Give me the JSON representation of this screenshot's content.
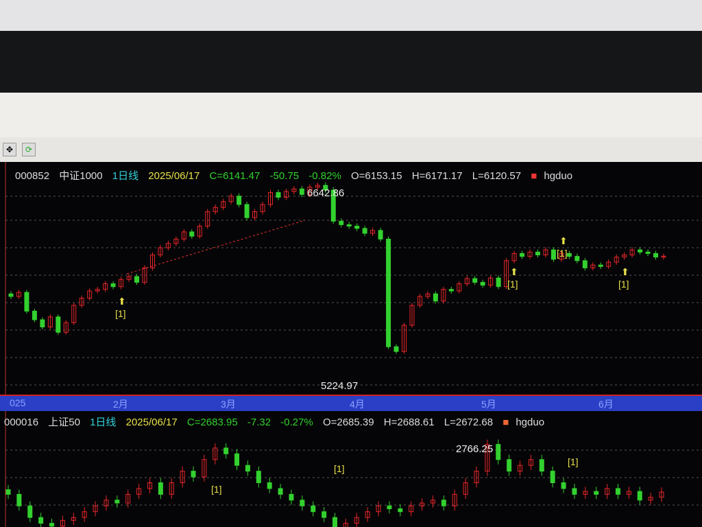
{
  "toolbar": {
    "icons": [
      "move-icon",
      "refresh-icon"
    ]
  },
  "top": {
    "code": "000852",
    "name": "中证1000",
    "period": "1日线",
    "date": "2025/06/17",
    "close": "C=6141.47",
    "change": "-50.75",
    "pct": "-0.82%",
    "open": "O=6153.15",
    "high": "H=6171.17",
    "low": "L=6120.57",
    "indicator": "hgduo",
    "max_label": "6642.86",
    "min_label": "5224.97",
    "signal": "[1]"
  },
  "bottom": {
    "code": "000016",
    "name": "上证50",
    "period": "1日线",
    "date": "2025/06/17",
    "close": "C=2683.95",
    "change": "-7.32",
    "pct": "-0.27%",
    "open": "O=2685.39",
    "high": "H=2688.61",
    "low": "L=2672.68",
    "indicator": "hgduo",
    "max_label": "2766.25",
    "signal": "[1]"
  },
  "x_axis": {
    "labels": [
      "025",
      "2月",
      "3月",
      "4月",
      "5月",
      "6月"
    ]
  },
  "colors": {
    "up": "#e8262a",
    "down": "#33d12f",
    "background": "#050507",
    "axis_bar": "#2a3fc6",
    "date": "#e8e04a",
    "code": "#e0e0e0",
    "period": "#34d0d8",
    "close": "#33d12f"
  },
  "chart_data": [
    {
      "type": "candlestick",
      "series": "000852 中证1000",
      "ylim": [
        5200,
        6700
      ],
      "closes": [
        5862,
        5890,
        5760,
        5700,
        5650,
        5720,
        5613,
        5680,
        5800,
        5850,
        5900,
        5911,
        5950,
        5930,
        5980,
        6000,
        5960,
        6060,
        6150,
        6200,
        6230,
        6260,
        6310,
        6280,
        6350,
        6450,
        6480,
        6520,
        6558,
        6500,
        6409,
        6450,
        6500,
        6583,
        6550,
        6590,
        6608,
        6570,
        6620,
        6633,
        6600,
        6384,
        6360,
        6350,
        6334,
        6300,
        6320,
        6260,
        5513,
        5480,
        5662,
        5800,
        5862,
        5880,
        5830,
        5911,
        5900,
        5950,
        5986,
        5960,
        5940,
        5990,
        5930,
        6110,
        6160,
        6140,
        6170,
        6150,
        6185,
        6120,
        6160,
        6140,
        6110,
        6060,
        6080,
        6070,
        6100,
        6135,
        6150,
        6185,
        6170,
        6160,
        6135,
        6141.47
      ],
      "annotations": [
        {
          "text": "6642.86",
          "type": "high"
        },
        {
          "text": "5224.97",
          "type": "low"
        }
      ]
    },
    {
      "type": "candlestick",
      "series": "000016 上证50",
      "ylim": [
        2620,
        2780
      ],
      "closes": [
        2680,
        2660,
        2640,
        2630,
        2625,
        2635,
        2640,
        2650,
        2660,
        2670,
        2665,
        2680,
        2690,
        2700,
        2680,
        2700,
        2720,
        2710,
        2740,
        2760,
        2750,
        2730,
        2720,
        2700,
        2690,
        2680,
        2670,
        2660,
        2650,
        2640,
        2620,
        2630,
        2640,
        2650,
        2660,
        2655,
        2650,
        2660,
        2665,
        2670,
        2660,
        2680,
        2700,
        2720,
        2766.25,
        2740,
        2720,
        2730,
        2740,
        2720,
        2700,
        2690,
        2680,
        2685,
        2680,
        2690,
        2680,
        2685,
        2670,
        2675,
        2683.95
      ],
      "annotations": [
        {
          "text": "2766.25",
          "type": "high"
        }
      ]
    }
  ]
}
